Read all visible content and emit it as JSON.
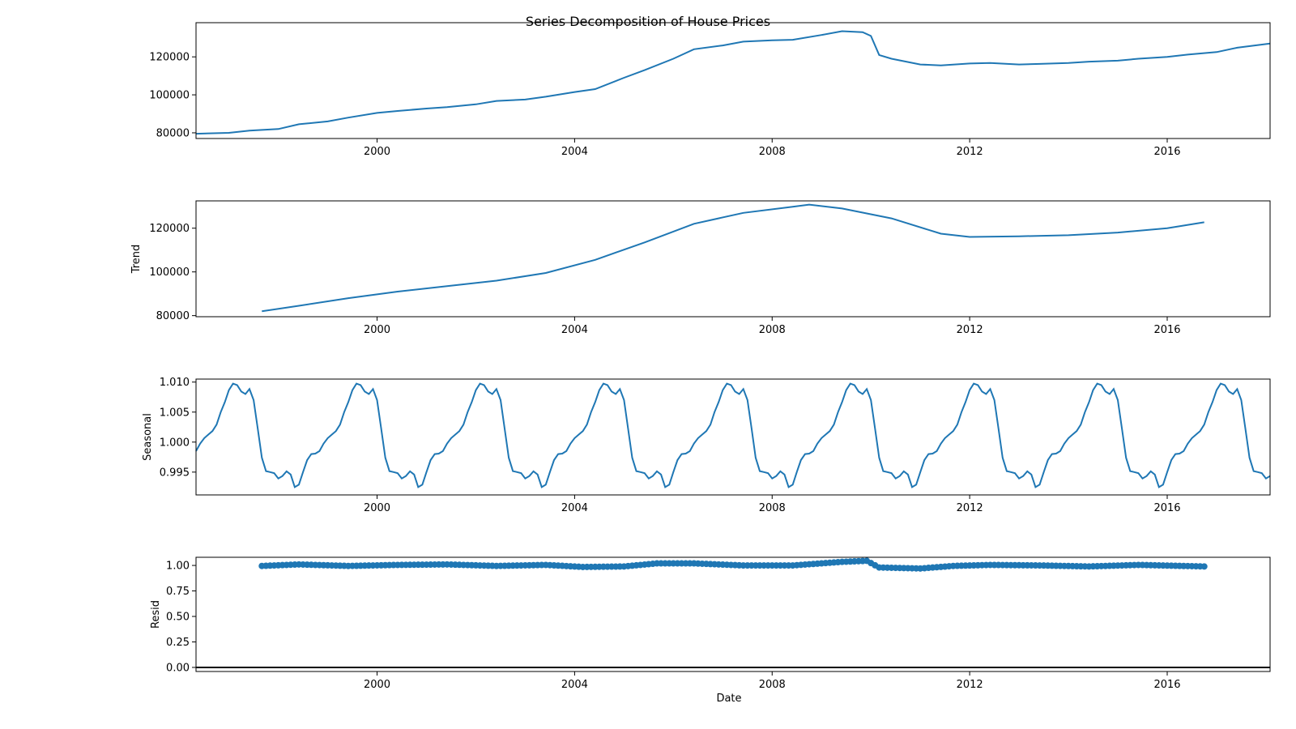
{
  "chart_data": {
    "type": "line",
    "title": "Series Decomposition of House Prices",
    "xlabel": "Date",
    "x_ticks": [
      "2000",
      "2004",
      "2008",
      "2012",
      "2016"
    ],
    "colors": {
      "series": "#1f77b4",
      "axis": "#000000",
      "zero_line": "#000000"
    },
    "panels": [
      {
        "name": "observed",
        "ylabel": "",
        "type": "line",
        "xlim": [
          "1996-05",
          "2018-02"
        ],
        "ylim": [
          77000,
          138000
        ],
        "y_ticks": [
          "80000",
          "100000",
          "120000"
        ],
        "points": [
          [
            "1996-05",
            79500
          ],
          [
            "1997-01",
            80000
          ],
          [
            "1997-06",
            81200
          ],
          [
            "1998-01",
            82000
          ],
          [
            "1998-06",
            84500
          ],
          [
            "1999-01",
            86000
          ],
          [
            "1999-06",
            88000
          ],
          [
            "2000-01",
            90500
          ],
          [
            "2000-06",
            91500
          ],
          [
            "2001-01",
            92800
          ],
          [
            "2001-06",
            93500
          ],
          [
            "2002-01",
            95000
          ],
          [
            "2002-06",
            96800
          ],
          [
            "2003-01",
            97500
          ],
          [
            "2003-06",
            99000
          ],
          [
            "2004-01",
            101500
          ],
          [
            "2004-06",
            103000
          ],
          [
            "2005-01",
            109000
          ],
          [
            "2005-06",
            113000
          ],
          [
            "2006-01",
            119000
          ],
          [
            "2006-06",
            124000
          ],
          [
            "2007-01",
            126000
          ],
          [
            "2007-06",
            128000
          ],
          [
            "2008-01",
            128700
          ],
          [
            "2008-06",
            129000
          ],
          [
            "2009-01",
            131500
          ],
          [
            "2009-06",
            133500
          ],
          [
            "2009-11",
            133000
          ],
          [
            "2010-01",
            131000
          ],
          [
            "2010-03",
            121000
          ],
          [
            "2010-06",
            119000
          ],
          [
            "2011-01",
            116000
          ],
          [
            "2011-06",
            115500
          ],
          [
            "2012-01",
            116500
          ],
          [
            "2012-06",
            116800
          ],
          [
            "2013-01",
            116000
          ],
          [
            "2013-06",
            116300
          ],
          [
            "2014-01",
            116800
          ],
          [
            "2014-06",
            117500
          ],
          [
            "2015-01",
            118000
          ],
          [
            "2015-06",
            119000
          ],
          [
            "2016-01",
            120000
          ],
          [
            "2016-06",
            121200
          ],
          [
            "2017-01",
            122500
          ],
          [
            "2017-06",
            124800
          ],
          [
            "2018-02",
            127000
          ]
        ]
      },
      {
        "name": "trend",
        "ylabel": "Trend",
        "type": "line",
        "xlim": [
          "1996-05",
          "2018-02"
        ],
        "ylim": [
          79500,
          132500
        ],
        "y_ticks": [
          "80000",
          "100000",
          "120000"
        ],
        "points": [
          [
            "1997-09",
            82000
          ],
          [
            "1998-06",
            84500
          ],
          [
            "1999-06",
            88000
          ],
          [
            "2000-06",
            91000
          ],
          [
            "2001-06",
            93500
          ],
          [
            "2002-06",
            96000
          ],
          [
            "2003-06",
            99500
          ],
          [
            "2004-06",
            105500
          ],
          [
            "2005-06",
            113500
          ],
          [
            "2006-06",
            122000
          ],
          [
            "2007-06",
            127000
          ],
          [
            "2008-06",
            129800
          ],
          [
            "2008-10",
            130800
          ],
          [
            "2009-06",
            129000
          ],
          [
            "2010-06",
            124500
          ],
          [
            "2011-06",
            117500
          ],
          [
            "2012-01",
            116000
          ],
          [
            "2013-01",
            116300
          ],
          [
            "2014-01",
            116800
          ],
          [
            "2015-01",
            118000
          ],
          [
            "2016-01",
            120000
          ],
          [
            "2016-10",
            122700
          ]
        ]
      },
      {
        "name": "seasonal",
        "ylabel": "Seasonal",
        "type": "line",
        "xlim": [
          "1996-05",
          "2018-02"
        ],
        "ylim": [
          0.9912,
          1.0105
        ],
        "y_ticks": [
          "0.995",
          "1.000",
          "1.005",
          "1.010"
        ],
        "period_start": "1996-05",
        "periods": 22,
        "monthly_factors": [
          0.9985,
          1.0,
          1.001,
          1.0015,
          1.0025,
          1.005,
          1.007,
          1.0095,
          1.01,
          1.0085,
          1.008,
          1.009,
          1.006,
          0.9985,
          0.9952,
          0.995,
          0.9948,
          0.9935,
          0.9952,
          0.995,
          0.9925,
          0.993,
          0.996,
          0.998,
          0.998
        ]
      },
      {
        "name": "resid",
        "ylabel": "Resid",
        "type": "scatter",
        "xlim": [
          "1996-05",
          "2018-02"
        ],
        "ylim": [
          -0.04,
          1.08
        ],
        "y_ticks": [
          "0.00",
          "0.25",
          "0.50",
          "0.75",
          "1.00"
        ],
        "zero_line": 0.0,
        "points": [
          [
            "1997-09",
            0.995
          ],
          [
            "1998-06",
            1.01
          ],
          [
            "1999-06",
            0.995
          ],
          [
            "2000-06",
            1.005
          ],
          [
            "2001-06",
            1.01
          ],
          [
            "2002-06",
            0.995
          ],
          [
            "2003-06",
            1.005
          ],
          [
            "2004-03",
            0.985
          ],
          [
            "2005-01",
            0.99
          ],
          [
            "2005-09",
            1.02
          ],
          [
            "2006-06",
            1.02
          ],
          [
            "2007-06",
            1.0
          ],
          [
            "2008-06",
            1.0
          ],
          [
            "2009-06",
            1.035
          ],
          [
            "2009-12",
            1.045
          ],
          [
            "2010-03",
            0.98
          ],
          [
            "2011-01",
            0.97
          ],
          [
            "2011-09",
            0.995
          ],
          [
            "2012-06",
            1.005
          ],
          [
            "2013-06",
            1.0
          ],
          [
            "2014-06",
            0.99
          ],
          [
            "2015-06",
            1.005
          ],
          [
            "2016-10",
            0.99
          ]
        ]
      }
    ]
  }
}
